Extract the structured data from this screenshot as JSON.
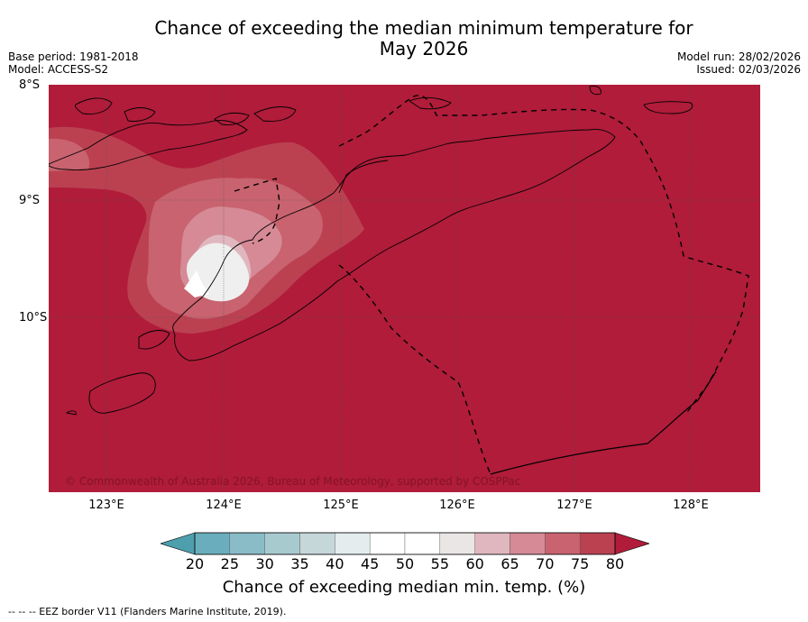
{
  "header": {
    "title_line1": "Chance of exceeding the median minimum temperature for",
    "title_line2": "May 2026",
    "base_period": "Base period: 1981-2018",
    "model": "Model: ACCESS-S2",
    "model_run": "Model run: 28/02/2026",
    "issued": "Issued: 02/03/2026"
  },
  "map": {
    "latitude_labels": [
      "8°S",
      "9°S",
      "10°S"
    ],
    "longitude_labels": [
      "123°E",
      "124°E",
      "125°E",
      "126°E",
      "127°E",
      "128°E"
    ],
    "copyright": "© Commonwealth of Australia 2026, Bureau of Meteorology, supported by COSPPac",
    "background_color": "#b01c3a",
    "land_outline_color": "#000000",
    "gridline_color": "#555555"
  },
  "colorbar": {
    "ticks": [
      "20",
      "25",
      "30",
      "35",
      "40",
      "45",
      "50",
      "55",
      "60",
      "65",
      "70",
      "75",
      "80"
    ],
    "under_color": "#4e9fae",
    "over_color": "#b01c3a",
    "colors": [
      "#6aaebd",
      "#8abcc8",
      "#a7cacf",
      "#c6d7da",
      "#e4eced",
      "#ffffff",
      "#ffffff",
      "#ebe6e6",
      "#e0b7bf",
      "#d58a96",
      "#c8636f",
      "#bb4151"
    ],
    "label": "Chance of exceeding median min. temp. (%)"
  },
  "footnote": "--  --  -- EEZ border V11 (Flanders Marine Institute, 2019)."
}
